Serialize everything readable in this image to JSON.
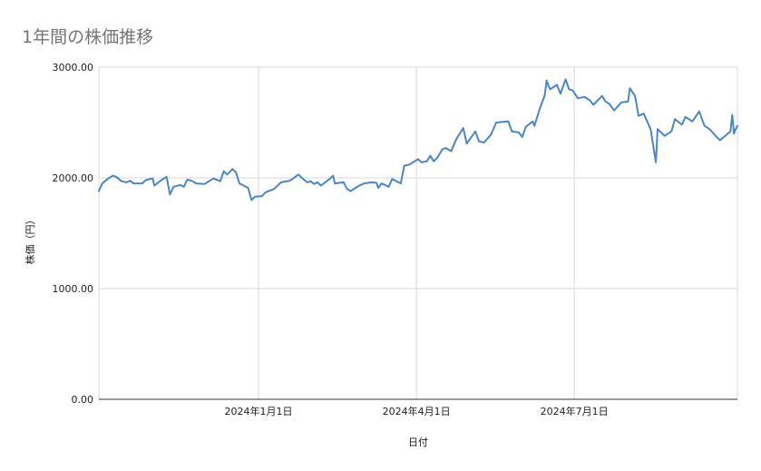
{
  "chart_data": {
    "type": "line",
    "title": "1年間の株価推移",
    "xlabel": "日付",
    "ylabel": "株価（円）",
    "ylim": [
      0,
      3000
    ],
    "y_ticks": [
      "0.00",
      "1000.00",
      "2000.00",
      "3000.00"
    ],
    "x_ticks": [
      {
        "label": "2024年1月1日",
        "date": "2024-01-01"
      },
      {
        "label": "2024年4月1日",
        "date": "2024-04-01"
      },
      {
        "label": "2024年7月1日",
        "date": "2024-07-01"
      }
    ],
    "x_range": [
      "2023-10-01",
      "2024-10-03"
    ],
    "grid": true,
    "legend": "none",
    "series": [
      {
        "color": "#4a86c8",
        "points": [
          [
            "2023-10-01",
            1880
          ],
          [
            "2023-10-03",
            1950
          ],
          [
            "2023-10-06",
            1990
          ],
          [
            "2023-10-09",
            2020
          ],
          [
            "2023-10-11",
            2010
          ],
          [
            "2023-10-14",
            1970
          ],
          [
            "2023-10-17",
            1960
          ],
          [
            "2023-10-19",
            1975
          ],
          [
            "2023-10-21",
            1950
          ],
          [
            "2023-10-26",
            1950
          ],
          [
            "2023-10-28",
            1980
          ],
          [
            "2023-11-01",
            1995
          ],
          [
            "2023-11-02",
            1930
          ],
          [
            "2023-11-06",
            1980
          ],
          [
            "2023-11-09",
            2010
          ],
          [
            "2023-11-11",
            1850
          ],
          [
            "2023-11-13",
            1920
          ],
          [
            "2023-11-17",
            1935
          ],
          [
            "2023-11-19",
            1920
          ],
          [
            "2023-11-21",
            1985
          ],
          [
            "2023-11-24",
            1970
          ],
          [
            "2023-11-26",
            1950
          ],
          [
            "2023-12-01",
            1945
          ],
          [
            "2023-12-06",
            1995
          ],
          [
            "2023-12-10",
            1970
          ],
          [
            "2023-12-12",
            2060
          ],
          [
            "2023-12-14",
            2030
          ],
          [
            "2023-12-17",
            2080
          ],
          [
            "2023-12-19",
            2050
          ],
          [
            "2023-12-21",
            1950
          ],
          [
            "2023-12-26",
            1910
          ],
          [
            "2023-12-28",
            1800
          ],
          [
            "2023-12-30",
            1830
          ],
          [
            "2024-01-03",
            1835
          ],
          [
            "2024-01-05",
            1870
          ],
          [
            "2024-01-10",
            1900
          ],
          [
            "2024-01-14",
            1960
          ],
          [
            "2024-01-19",
            1975
          ],
          [
            "2024-01-21",
            1995
          ],
          [
            "2024-01-24",
            2030
          ],
          [
            "2024-01-26",
            2000
          ],
          [
            "2024-01-29",
            1960
          ],
          [
            "2024-01-31",
            1970
          ],
          [
            "2024-02-02",
            1945
          ],
          [
            "2024-02-04",
            1960
          ],
          [
            "2024-02-06",
            1930
          ],
          [
            "2024-02-11",
            1990
          ],
          [
            "2024-02-13",
            2020
          ],
          [
            "2024-02-14",
            1950
          ],
          [
            "2024-02-19",
            1960
          ],
          [
            "2024-02-21",
            1900
          ],
          [
            "2024-02-23",
            1880
          ],
          [
            "2024-02-28",
            1930
          ],
          [
            "2024-03-02",
            1950
          ],
          [
            "2024-03-06",
            1960
          ],
          [
            "2024-03-09",
            1955
          ],
          [
            "2024-03-10",
            1910
          ],
          [
            "2024-03-12",
            1950
          ],
          [
            "2024-03-16",
            1920
          ],
          [
            "2024-03-18",
            1990
          ],
          [
            "2024-03-23",
            1950
          ],
          [
            "2024-03-25",
            2110
          ],
          [
            "2024-03-28",
            2120
          ],
          [
            "2024-03-31",
            2150
          ],
          [
            "2024-04-02",
            2170
          ],
          [
            "2024-04-04",
            2140
          ],
          [
            "2024-04-07",
            2150
          ],
          [
            "2024-04-09",
            2200
          ],
          [
            "2024-04-11",
            2150
          ],
          [
            "2024-04-13",
            2180
          ],
          [
            "2024-04-16",
            2260
          ],
          [
            "2024-04-18",
            2270
          ],
          [
            "2024-04-21",
            2240
          ],
          [
            "2024-04-24",
            2350
          ],
          [
            "2024-04-28",
            2450
          ],
          [
            "2024-04-30",
            2310
          ],
          [
            "2024-05-05",
            2420
          ],
          [
            "2024-05-07",
            2330
          ],
          [
            "2024-05-10",
            2320
          ],
          [
            "2024-05-14",
            2390
          ],
          [
            "2024-05-17",
            2500
          ],
          [
            "2024-05-24",
            2510
          ],
          [
            "2024-05-26",
            2420
          ],
          [
            "2024-05-30",
            2410
          ],
          [
            "2024-06-01",
            2370
          ],
          [
            "2024-06-03",
            2460
          ],
          [
            "2024-06-07",
            2510
          ],
          [
            "2024-06-08",
            2470
          ],
          [
            "2024-06-11",
            2620
          ],
          [
            "2024-06-14",
            2750
          ],
          [
            "2024-06-15",
            2880
          ],
          [
            "2024-06-17",
            2800
          ],
          [
            "2024-06-21",
            2840
          ],
          [
            "2024-06-23",
            2760
          ],
          [
            "2024-06-26",
            2890
          ],
          [
            "2024-06-28",
            2800
          ],
          [
            "2024-06-30",
            2790
          ],
          [
            "2024-07-03",
            2720
          ],
          [
            "2024-07-07",
            2730
          ],
          [
            "2024-07-10",
            2700
          ],
          [
            "2024-07-12",
            2660
          ],
          [
            "2024-07-17",
            2740
          ],
          [
            "2024-07-19",
            2690
          ],
          [
            "2024-07-21",
            2670
          ],
          [
            "2024-07-24",
            2610
          ],
          [
            "2024-07-28",
            2680
          ],
          [
            "2024-08-01",
            2690
          ],
          [
            "2024-08-02",
            2810
          ],
          [
            "2024-08-05",
            2740
          ],
          [
            "2024-08-07",
            2560
          ],
          [
            "2024-08-10",
            2580
          ],
          [
            "2024-08-14",
            2440
          ],
          [
            "2024-08-17",
            2140
          ],
          [
            "2024-08-18",
            2440
          ],
          [
            "2024-08-22",
            2380
          ],
          [
            "2024-08-26",
            2420
          ],
          [
            "2024-08-28",
            2530
          ],
          [
            "2024-09-01",
            2480
          ],
          [
            "2024-09-03",
            2550
          ],
          [
            "2024-09-07",
            2510
          ],
          [
            "2024-09-11",
            2600
          ],
          [
            "2024-09-14",
            2470
          ],
          [
            "2024-09-17",
            2440
          ],
          [
            "2024-09-21",
            2370
          ],
          [
            "2024-09-23",
            2340
          ],
          [
            "2024-09-26",
            2380
          ],
          [
            "2024-09-29",
            2420
          ],
          [
            "2024-09-30",
            2570
          ],
          [
            "2024-10-01",
            2400
          ],
          [
            "2024-10-02",
            2440
          ],
          [
            "2024-10-03",
            2470
          ]
        ]
      }
    ]
  }
}
